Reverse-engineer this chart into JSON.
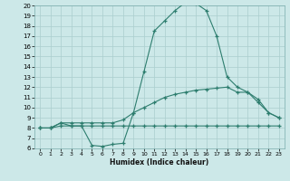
{
  "xlabel": "Humidex (Indice chaleur)",
  "x": [
    0,
    1,
    2,
    3,
    4,
    5,
    6,
    7,
    8,
    9,
    10,
    11,
    12,
    13,
    14,
    15,
    16,
    17,
    18,
    19,
    20,
    21,
    22,
    23
  ],
  "line_max": [
    8.0,
    8.0,
    8.5,
    8.2,
    8.2,
    6.3,
    6.2,
    6.4,
    6.5,
    9.5,
    13.5,
    17.5,
    18.5,
    19.5,
    20.3,
    20.2,
    19.5,
    17.0,
    13.0,
    12.0,
    11.5,
    10.5,
    9.5,
    9.0
  ],
  "line_mean": [
    8.0,
    8.0,
    8.5,
    8.5,
    8.5,
    8.5,
    8.5,
    8.5,
    8.8,
    9.5,
    10.0,
    10.5,
    11.0,
    11.3,
    11.5,
    11.7,
    11.8,
    11.9,
    12.0,
    11.5,
    11.5,
    10.8,
    9.5,
    9.0
  ],
  "line_min": [
    8.0,
    8.0,
    8.2,
    8.2,
    8.2,
    8.2,
    8.2,
    8.2,
    8.2,
    8.2,
    8.2,
    8.2,
    8.2,
    8.2,
    8.2,
    8.2,
    8.2,
    8.2,
    8.2,
    8.2,
    8.2,
    8.2,
    8.2,
    8.2
  ],
  "line_color": "#2d7d6e",
  "bg_color": "#cce8e8",
  "grid_color": "#aacece",
  "xlim": [
    -0.5,
    23.5
  ],
  "ylim": [
    6,
    20
  ],
  "yticks": [
    6,
    7,
    8,
    9,
    10,
    11,
    12,
    13,
    14,
    15,
    16,
    17,
    18,
    19,
    20
  ],
  "xticks": [
    0,
    1,
    2,
    3,
    4,
    5,
    6,
    7,
    8,
    9,
    10,
    11,
    12,
    13,
    14,
    15,
    16,
    17,
    18,
    19,
    20,
    21,
    22,
    23
  ],
  "xlabel_fontsize": 5.5,
  "tick_labelsize": 5.0,
  "linewidth": 0.8,
  "markersize": 3.0,
  "markeredgewidth": 0.9
}
